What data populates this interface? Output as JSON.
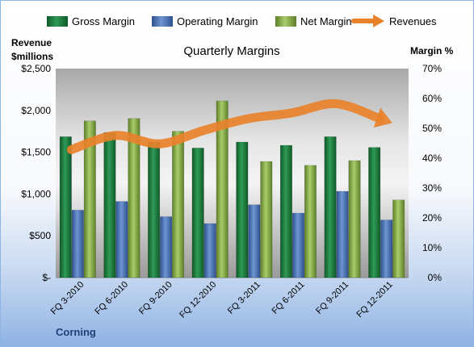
{
  "chart_data": {
    "type": "bar",
    "title": "Quarterly Margins",
    "company": "Corning",
    "y_left_label": [
      "Revenue",
      "$millions"
    ],
    "y_right_label": "Margin %",
    "y_left_ticks": [
      "$-",
      "$500",
      "$1,000",
      "$1,500",
      "$2,000",
      "$2,500"
    ],
    "y_right_ticks": [
      "0%",
      "10%",
      "20%",
      "30%",
      "40%",
      "50%",
      "60%",
      "70%"
    ],
    "y_left_lim": [
      0,
      2500
    ],
    "y_right_lim": [
      0,
      70
    ],
    "grid": false,
    "legend_position": "top",
    "categories": [
      "FQ 3-2010",
      "FQ 6-2010",
      "FQ 9-2010",
      "FQ 12-2010",
      "FQ 3-2011",
      "FQ 6-2011",
      "FQ 9-2011",
      "FQ 12-2011"
    ],
    "series": [
      {
        "name": "Gross Margin",
        "axis": "right",
        "color": "#1e7a3c",
        "values": [
          47.2,
          48.6,
          45.4,
          43.4,
          45.4,
          44.3,
          47.2,
          43.6
        ]
      },
      {
        "name": "Operating Margin",
        "axis": "right",
        "color": "#4a74b8",
        "values": [
          22.6,
          25.5,
          20.4,
          18.1,
          24.4,
          21.6,
          28.9,
          19.3
        ]
      },
      {
        "name": "Net Margin",
        "axis": "right",
        "color": "#8ab04a",
        "values": [
          52.5,
          53.3,
          49.0,
          59.2,
          38.9,
          37.6,
          39.2,
          26.0
        ]
      },
      {
        "name": "Revenues",
        "axis": "left",
        "color": "#e9812b",
        "values": [
          1530,
          1700,
          1600,
          1760,
          1900,
          1970,
          2080,
          1900
        ]
      }
    ]
  }
}
